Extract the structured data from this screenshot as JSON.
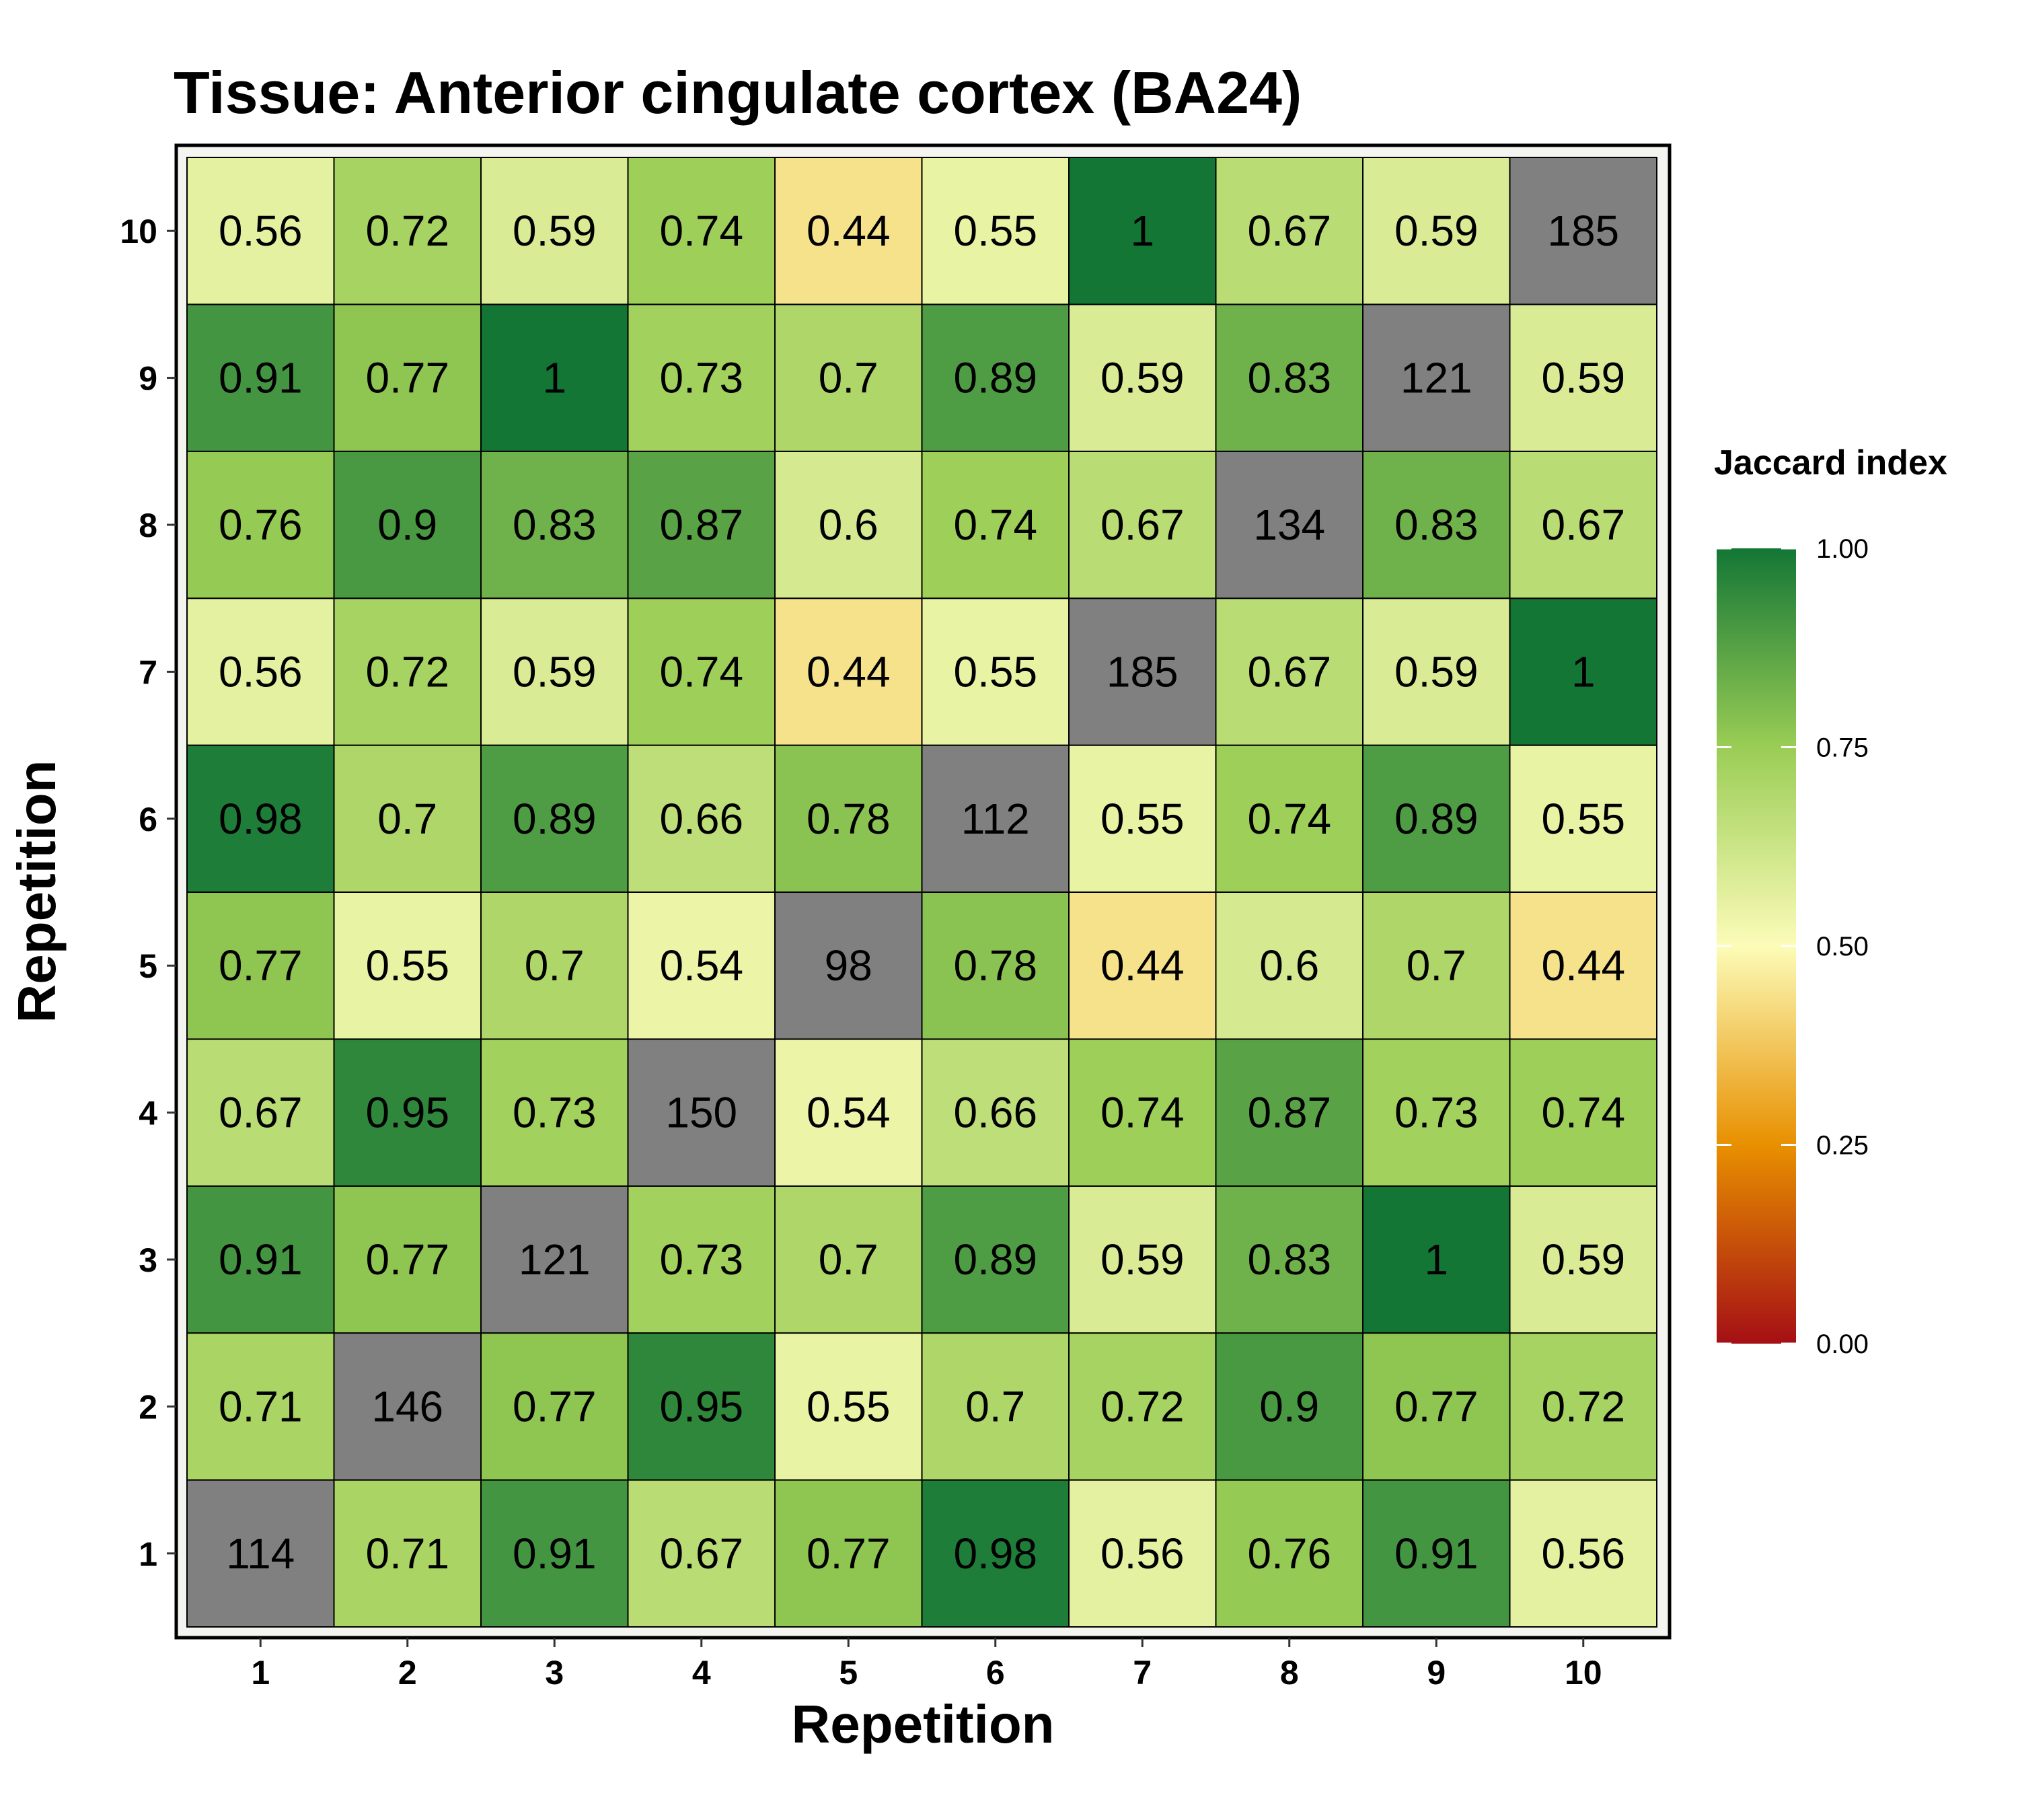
{
  "chart_data": {
    "type": "heatmap",
    "title": "Tissue: Anterior cingulate cortex (BA24)",
    "xlabel": "Repetition",
    "ylabel": "Repetition",
    "x_categories": [
      "1",
      "2",
      "3",
      "4",
      "5",
      "6",
      "7",
      "8",
      "9",
      "10"
    ],
    "y_categories": [
      "1",
      "2",
      "3",
      "4",
      "5",
      "6",
      "7",
      "8",
      "9",
      "10"
    ],
    "rows_from_bottom": [
      [
        "114",
        "0.71",
        "0.91",
        "0.67",
        "0.77",
        "0.98",
        "0.56",
        "0.76",
        "0.91",
        "0.56"
      ],
      [
        "0.71",
        "146",
        "0.77",
        "0.95",
        "0.55",
        "0.7",
        "0.72",
        "0.9",
        "0.77",
        "0.72"
      ],
      [
        "0.91",
        "0.77",
        "121",
        "0.73",
        "0.7",
        "0.89",
        "0.59",
        "0.83",
        "1",
        "0.59"
      ],
      [
        "0.67",
        "0.95",
        "0.73",
        "150",
        "0.54",
        "0.66",
        "0.74",
        "0.87",
        "0.73",
        "0.74"
      ],
      [
        "0.77",
        "0.55",
        "0.7",
        "0.54",
        "98",
        "0.78",
        "0.44",
        "0.6",
        "0.7",
        "0.44"
      ],
      [
        "0.98",
        "0.7",
        "0.89",
        "0.66",
        "0.78",
        "112",
        "0.55",
        "0.74",
        "0.89",
        "0.55"
      ],
      [
        "0.56",
        "0.72",
        "0.59",
        "0.74",
        "0.44",
        "0.55",
        "185",
        "0.67",
        "0.59",
        "1"
      ],
      [
        "0.76",
        "0.9",
        "0.83",
        "0.87",
        "0.6",
        "0.74",
        "0.67",
        "134",
        "0.83",
        "0.67"
      ],
      [
        "0.91",
        "0.77",
        "1",
        "0.73",
        "0.7",
        "0.89",
        "0.59",
        "0.83",
        "121",
        "0.59"
      ],
      [
        "0.56",
        "0.72",
        "0.59",
        "0.74",
        "0.44",
        "0.55",
        "1",
        "0.67",
        "0.59",
        "185"
      ]
    ],
    "diagonal_color": "#808080",
    "legend": {
      "title": "Jaccard index",
      "ticks": [
        "1.00",
        "0.75",
        "0.50",
        "0.25",
        "0.00"
      ],
      "tick_values": [
        1.0,
        0.75,
        0.5,
        0.25,
        0.0
      ],
      "range": [
        0,
        1
      ],
      "placement": "right"
    },
    "color_scale": [
      {
        "value": 0.0,
        "color": "#a50f15"
      },
      {
        "value": 0.25,
        "color": "#e89000"
      },
      {
        "value": 0.5,
        "color": "#fcfcb8"
      },
      {
        "value": 0.75,
        "color": "#9acd55"
      },
      {
        "value": 1.0,
        "color": "#137635"
      }
    ]
  }
}
